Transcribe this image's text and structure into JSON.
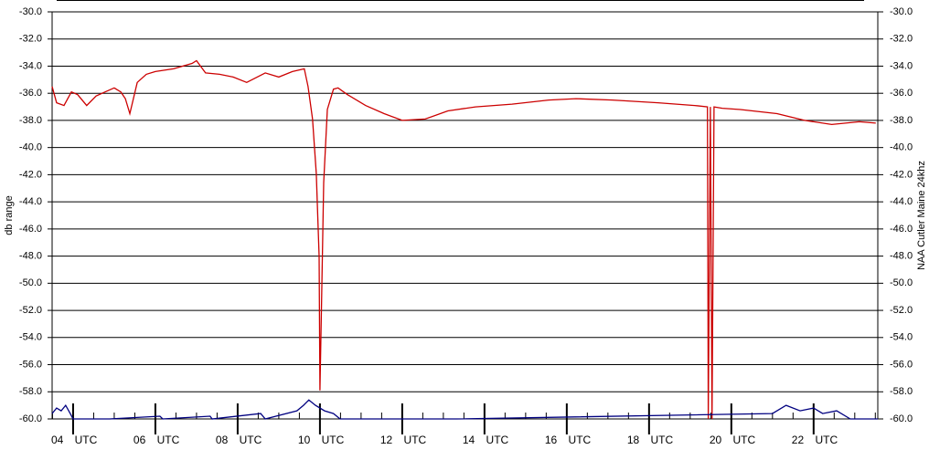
{
  "chart_data": {
    "type": "line",
    "y_label": "db range",
    "y2_label": "NAA Cutler Maine 24khz",
    "x": [
      3.49,
      3.6,
      3.78,
      3.96,
      4.11,
      4.33,
      4.56,
      4.78,
      5.0,
      5.16,
      5.27,
      5.38,
      5.56,
      5.78,
      6.0,
      6.44,
      6.89,
      7.0,
      7.22,
      7.56,
      7.89,
      8.22,
      8.67,
      9.0,
      9.33,
      9.62,
      9.71,
      9.82,
      9.91,
      9.98,
      10.0,
      10.04,
      10.09,
      10.18,
      10.33,
      10.44,
      10.67,
      11.11,
      11.56,
      12.0,
      12.56,
      13.11,
      13.78,
      14.67,
      15.56,
      16.22,
      17.11,
      18.22,
      19.11,
      19.42,
      19.44,
      19.49,
      19.53,
      19.58,
      19.78,
      20.22,
      21.11,
      21.78,
      22.44,
      23.11,
      23.51
    ],
    "series": [
      {
        "color": "#cc0000",
        "values": [
          -35.5,
          -36.7,
          -36.9,
          -35.9,
          -36.1,
          -36.9,
          -36.2,
          -35.9,
          -35.6,
          -35.9,
          -36.4,
          -37.5,
          -35.2,
          -34.6,
          -34.4,
          -34.2,
          -33.8,
          -33.6,
          -34.5,
          -34.6,
          -34.8,
          -35.2,
          -34.5,
          -34.8,
          -34.4,
          -34.2,
          -35.5,
          -37.9,
          -41.9,
          -48.0,
          -57.9,
          -51.3,
          -42.6,
          -37.2,
          -35.7,
          -35.6,
          -36.1,
          -36.9,
          -37.5,
          -38.0,
          -37.9,
          -37.3,
          -37.0,
          -36.8,
          -36.5,
          -36.4,
          -36.5,
          -36.7,
          -36.9,
          -37.0,
          -60,
          -37.0,
          -60,
          -37.0,
          -37.1,
          -37.2,
          -37.5,
          -38.0,
          -38.3,
          -38.1,
          -38.2
        ]
      },
      {
        "color": "#000080",
        "x": [
          3.49,
          3.6,
          3.71,
          3.82,
          3.93,
          4.0,
          4.89,
          6.11,
          6.18,
          7.33,
          7.38,
          8.56,
          8.67,
          9.44,
          9.6,
          9.73,
          9.89,
          10.11,
          10.33,
          10.49,
          13.33,
          21.0,
          21.33,
          21.67,
          22.0,
          22.22,
          22.56,
          22.89,
          23.56
        ],
        "values": [
          -59.6,
          -59.2,
          -59.4,
          -59.0,
          -59.6,
          -60,
          -60,
          -59.8,
          -60,
          -59.8,
          -60,
          -59.6,
          -60,
          -59.4,
          -59.0,
          -58.6,
          -59.0,
          -59.4,
          -59.6,
          -60,
          -60,
          -59.6,
          -59.0,
          -59.4,
          -59.2,
          -59.6,
          -59.4,
          -60,
          -60
        ]
      }
    ],
    "xlim": [
      3.49,
      23.56
    ],
    "xticks": [
      {
        "value": 4,
        "label": "04 UTC"
      },
      {
        "value": 6,
        "label": "06 UTC"
      },
      {
        "value": 8,
        "label": "08 UTC"
      },
      {
        "value": 10,
        "label": "10 UTC"
      },
      {
        "value": 12,
        "label": "12 UTC"
      },
      {
        "value": 14,
        "label": "14 UTC"
      },
      {
        "value": 16,
        "label": "16 UTC"
      },
      {
        "value": 18,
        "label": "18 UTC"
      },
      {
        "value": 20,
        "label": "20 UTC"
      },
      {
        "value": 22,
        "label": "22 UTC"
      }
    ],
    "xminorticks": [
      3.5,
      4.5,
      5,
      5.5,
      6.5,
      7,
      7.5,
      8.5,
      9,
      9.5,
      10.5,
      11,
      11.5,
      12.5,
      13,
      13.5,
      14.5,
      15,
      15.5,
      16.5,
      17,
      17.5,
      18.5,
      19,
      19.5,
      20.5,
      21,
      21.5,
      22.5,
      23,
      23.5
    ],
    "ylim": [
      -60,
      -30
    ],
    "yticks": [
      {
        "value": -30,
        "label": "-30.0"
      },
      {
        "value": -32,
        "label": "-32.0"
      },
      {
        "value": -34,
        "label": "-34.0"
      },
      {
        "value": -36,
        "label": "-36.0"
      },
      {
        "value": -38,
        "label": "-38.0"
      },
      {
        "value": -40,
        "label": "-40.0"
      },
      {
        "value": -42,
        "label": "-42.0"
      },
      {
        "value": -44,
        "label": "-44.0"
      },
      {
        "value": -46,
        "label": "-46.0"
      },
      {
        "value": -48,
        "label": "-48.0"
      },
      {
        "value": -50,
        "label": "-50.0"
      },
      {
        "value": -52,
        "label": "-52.0"
      },
      {
        "value": -54,
        "label": "-54.0"
      },
      {
        "value": -56,
        "label": "-56.0"
      },
      {
        "value": -58,
        "label": "-58.0"
      },
      {
        "value": -60,
        "label": "-60.0"
      }
    ],
    "grid": true
  }
}
